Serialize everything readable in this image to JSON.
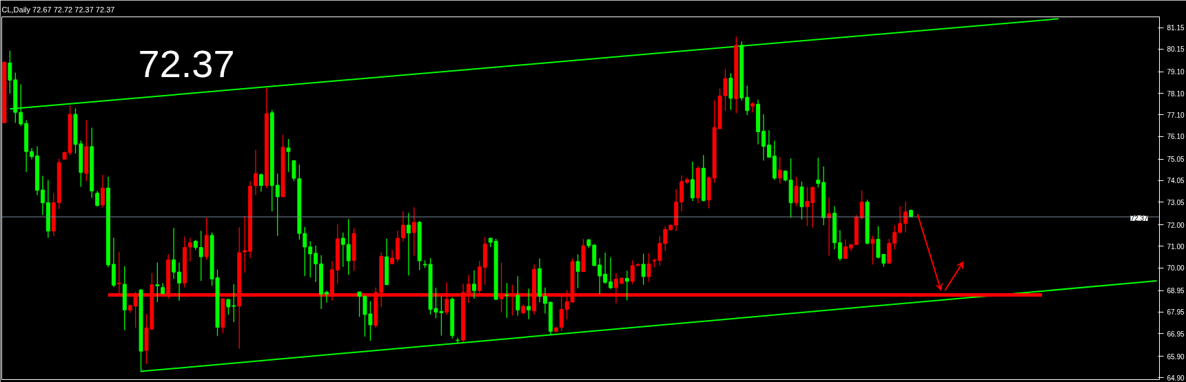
{
  "chart_data": {
    "type": "candlestick",
    "title": "CL,Daily  72.67 72.72 72.37 72.37",
    "categories": [
      null,
      null,
      null,
      null,
      null,
      null,
      null,
      null,
      null,
      null,
      null,
      null,
      null,
      null,
      null,
      null,
      null,
      null,
      null,
      null,
      null,
      null,
      null,
      null,
      null,
      null,
      null,
      null,
      null,
      null,
      null,
      null,
      null,
      null,
      null,
      null,
      null,
      null,
      null,
      null,
      null,
      null,
      null,
      null,
      null,
      null,
      null,
      null,
      null,
      null,
      null,
      null,
      null,
      null,
      null,
      null,
      null,
      null,
      null,
      null,
      null,
      null,
      null,
      null,
      null,
      null,
      null,
      null,
      null,
      null,
      null,
      null,
      null,
      null,
      null,
      null,
      null,
      null,
      null,
      null,
      null,
      null,
      null,
      null,
      null,
      null,
      null,
      null,
      null,
      null,
      null,
      null,
      null,
      null,
      null,
      null,
      null,
      null,
      null,
      null,
      null,
      null,
      null,
      null,
      null,
      null,
      null,
      null,
      null,
      null,
      null,
      null,
      null,
      null,
      null,
      null,
      null,
      null,
      null,
      null,
      null,
      null,
      null,
      null,
      null,
      null,
      null,
      null,
      null,
      null,
      null,
      null,
      null,
      null,
      null,
      null,
      null,
      null,
      null,
      null,
      null,
      null,
      null,
      null,
      null,
      null,
      null,
      null,
      null,
      null,
      null,
      null,
      null,
      null,
      null,
      null,
      null,
      null,
      null,
      null,
      null,
      null,
      null,
      null,
      null,
      null,
      null,
      null,
      null,
      null,
      null,
      null,
      null,
      null,
      null,
      null,
      null,
      null,
      null,
      null,
      null,
      null,
      null,
      null,
      null,
      null,
      null,
      null,
      null,
      null,
      null,
      null,
      null,
      null,
      null,
      null,
      null,
      null,
      null,
      null,
      null,
      null,
      null,
      null,
      null,
      null,
      null,
      null,
      null,
      null,
      null,
      null
    ],
    "ohlc": [
      [
        76.73,
        79.6,
        76.73,
        79.54
      ],
      [
        79.51,
        80.08,
        78.08,
        78.71
      ],
      [
        78.73,
        79.06,
        76.73,
        77.22
      ],
      [
        77.22,
        78.52,
        76.59,
        76.68
      ],
      [
        76.7,
        76.86,
        74.46,
        75.4
      ],
      [
        75.4,
        75.57,
        75.04,
        75.17
      ],
      [
        75.2,
        75.65,
        73.38,
        73.6
      ],
      [
        73.62,
        74.27,
        72.46,
        73.02
      ],
      [
        73.03,
        74.08,
        71.4,
        71.71
      ],
      [
        71.71,
        73.47,
        71.49,
        73.03
      ],
      [
        73.03,
        75.06,
        72.73,
        74.89
      ],
      [
        75.04,
        75.4,
        75.04,
        75.36
      ],
      [
        75.35,
        77.54,
        75.22,
        77.13
      ],
      [
        77.13,
        77.4,
        75.3,
        75.73
      ],
      [
        75.76,
        75.92,
        73.76,
        74.43
      ],
      [
        74.39,
        76.86,
        74.03,
        75.63
      ],
      [
        75.63,
        76.51,
        73.25,
        73.57
      ],
      [
        73.47,
        73.57,
        72.84,
        72.9
      ],
      [
        72.92,
        74.32,
        72.81,
        73.71
      ],
      [
        73.71,
        74.23,
        70.03,
        70.14
      ],
      [
        70.17,
        71.4,
        69.11,
        69.2
      ],
      [
        69.27,
        70.75,
        68.79,
        69.3
      ],
      [
        69.24,
        70.08,
        67.11,
        68.05
      ],
      [
        68.05,
        68.3,
        67.92,
        68.25
      ],
      [
        68.23,
        68.89,
        67.22,
        68.73
      ],
      [
        68.98,
        69.03,
        65.17,
        66.14
      ],
      [
        66.17,
        67.87,
        65.54,
        67.22
      ],
      [
        67.16,
        69.76,
        67.16,
        69.22
      ],
      [
        69.22,
        70.25,
        68.41,
        69.17
      ],
      [
        69.09,
        69.3,
        68.79,
        68.81
      ],
      [
        68.79,
        70.63,
        68.57,
        70.38
      ],
      [
        70.38,
        71.85,
        69.49,
        69.81
      ],
      [
        69.81,
        70.25,
        68.48,
        69.3
      ],
      [
        69.3,
        71.46,
        69.09,
        70.95
      ],
      [
        70.97,
        71.4,
        70.3,
        71.17
      ],
      [
        71.24,
        71.3,
        70.84,
        70.95
      ],
      [
        70.95,
        71.73,
        69.4,
        70.52
      ],
      [
        70.52,
        72.33,
        70.38,
        71.51
      ],
      [
        71.51,
        71.65,
        69.17,
        69.49
      ],
      [
        69.54,
        69.92,
        66.84,
        67.25
      ],
      [
        67.25,
        68.59,
        66.97,
        68.57
      ],
      [
        68.54,
        68.57,
        67.84,
        68.19
      ],
      [
        68.25,
        69.24,
        67.49,
        68.22
      ],
      [
        68.23,
        71.89,
        66.25,
        70.71
      ],
      [
        70.74,
        72.41,
        69.78,
        70.81
      ],
      [
        70.77,
        74.03,
        70.46,
        73.79
      ],
      [
        73.82,
        75.49,
        73.38,
        74.38
      ],
      [
        74.33,
        74.38,
        73.54,
        73.82
      ],
      [
        73.82,
        78.35,
        73.71,
        77.16
      ],
      [
        77.2,
        77.33,
        72.63,
        73.82
      ],
      [
        73.84,
        74.38,
        71.49,
        73.3
      ],
      [
        73.3,
        76.19,
        73.3,
        75.6
      ],
      [
        75.57,
        75.98,
        74.46,
        75.4
      ],
      [
        74.98,
        74.98,
        74.03,
        74.16
      ],
      [
        74.14,
        74.79,
        71.31,
        71.6
      ],
      [
        71.6,
        71.9,
        69.63,
        70.97
      ],
      [
        70.98,
        71.24,
        69.56,
        70.65
      ],
      [
        70.68,
        71.04,
        69.35,
        70.19
      ],
      [
        70.19,
        70.59,
        68.09,
        68.79
      ],
      [
        68.87,
        68.95,
        68.39,
        68.79
      ],
      [
        68.79,
        70.32,
        68.48,
        69.92
      ],
      [
        69.9,
        72.03,
        69.27,
        71.35
      ],
      [
        71.38,
        71.65,
        70.05,
        71.09
      ],
      [
        71.09,
        72.27,
        69.68,
        70.33
      ],
      [
        70.35,
        71.85,
        69.87,
        71.6
      ],
      [
        68.89,
        68.89,
        67.73,
        68.68
      ],
      [
        68.68,
        68.73,
        66.81,
        67.84
      ],
      [
        67.87,
        68.46,
        66.62,
        67.36
      ],
      [
        67.33,
        69.09,
        67.22,
        68.86
      ],
      [
        68.86,
        70.73,
        68.19,
        70.54
      ],
      [
        70.52,
        71.36,
        69.22,
        69.22
      ],
      [
        70.19,
        70.84,
        70.17,
        70.46
      ],
      [
        70.41,
        71.73,
        70.28,
        71.38
      ],
      [
        71.4,
        72.63,
        71.22,
        71.99
      ],
      [
        71.99,
        72.55,
        69.65,
        71.62
      ],
      [
        71.64,
        72.81,
        70.57,
        72.12
      ],
      [
        72.12,
        72.18,
        69.9,
        70.33
      ],
      [
        70.17,
        70.35,
        70.0,
        70.14
      ],
      [
        70.17,
        70.46,
        67.84,
        68.08
      ],
      [
        68.12,
        69.08,
        67.67,
        67.95
      ],
      [
        67.99,
        68.68,
        66.86,
        67.92
      ],
      [
        67.95,
        69.33,
        67.83,
        68.55
      ],
      [
        68.55,
        68.63,
        66.73,
        66.86
      ],
      [
        66.65,
        66.76,
        66.52,
        66.63
      ],
      [
        66.65,
        69.27,
        66.57,
        68.86
      ],
      [
        68.84,
        69.68,
        68.37,
        69.25
      ],
      [
        69.25,
        69.89,
        68.57,
        68.95
      ],
      [
        68.95,
        70.33,
        68.79,
        70.05
      ],
      [
        70.03,
        71.44,
        69.22,
        71.11
      ],
      [
        71.38,
        71.4,
        70.97,
        71.19
      ],
      [
        71.24,
        71.36,
        68.52,
        68.54
      ],
      [
        68.57,
        70.25,
        67.94,
        68.73
      ],
      [
        68.74,
        69.3,
        67.68,
        68.72
      ],
      [
        68.72,
        69.22,
        67.79,
        68.74
      ],
      [
        68.73,
        69.62,
        67.79,
        68.05
      ],
      [
        67.92,
        68.3,
        67.84,
        68.22
      ],
      [
        68.22,
        69.04,
        67.62,
        68.05
      ],
      [
        68.01,
        70.17,
        67.84,
        69.94
      ],
      [
        69.97,
        70.44,
        68.41,
        68.68
      ],
      [
        68.68,
        69.09,
        67.89,
        68.35
      ],
      [
        68.41,
        68.44,
        66.9,
        67.06
      ],
      [
        67.06,
        67.27,
        67.0,
        67.22
      ],
      [
        67.25,
        68.68,
        67.08,
        68.08
      ],
      [
        68.08,
        68.98,
        67.62,
        68.43
      ],
      [
        68.41,
        70.44,
        68.41,
        70.3
      ],
      [
        70.3,
        70.63,
        69.06,
        69.84
      ],
      [
        69.83,
        71.35,
        69.81,
        71.03
      ],
      [
        71.3,
        71.35,
        70.92,
        71.03
      ],
      [
        71.06,
        71.11,
        70.09,
        70.11
      ],
      [
        70.14,
        70.46,
        68.79,
        69.63
      ],
      [
        69.71,
        70.71,
        69.27,
        69.33
      ],
      [
        69.36,
        70.49,
        69.03,
        69.08
      ],
      [
        69.09,
        69.76,
        68.35,
        69.49
      ],
      [
        69.28,
        69.58,
        69.27,
        69.52
      ],
      [
        69.52,
        69.87,
        68.5,
        69.38
      ],
      [
        69.38,
        70.35,
        69.25,
        70.11
      ],
      [
        70.11,
        70.22,
        70.11,
        70.16
      ],
      [
        70.17,
        70.66,
        69.22,
        69.6
      ],
      [
        69.6,
        70.68,
        69.36,
        70.19
      ],
      [
        70.32,
        70.44,
        70.03,
        70.35
      ],
      [
        70.35,
        71.49,
        70.11,
        71.14
      ],
      [
        71.13,
        71.94,
        70.79,
        71.79
      ],
      [
        71.78,
        71.99,
        71.73,
        71.99
      ],
      [
        71.99,
        73.65,
        71.71,
        73.06
      ],
      [
        73.06,
        74.3,
        72.63,
        74.01
      ],
      [
        73.97,
        74.19,
        73.89,
        74.1
      ],
      [
        74.1,
        74.93,
        73.11,
        73.25
      ],
      [
        73.25,
        74.73,
        73.0,
        74.63
      ],
      [
        74.63,
        75.24,
        73.08,
        73.13
      ],
      [
        73.16,
        74.25,
        72.76,
        74.19
      ],
      [
        74.17,
        77.78,
        73.95,
        76.52
      ],
      [
        76.46,
        78.32,
        76.46,
        77.98
      ],
      [
        77.99,
        79.22,
        77.29,
        78.79
      ],
      [
        78.81,
        79.04,
        77.33,
        77.87
      ],
      [
        77.85,
        80.73,
        77.19,
        80.33
      ],
      [
        80.33,
        80.52,
        77.76,
        77.89
      ],
      [
        77.92,
        78.46,
        77.09,
        77.3
      ],
      [
        77.51,
        77.68,
        77.22,
        77.62
      ],
      [
        77.6,
        77.81,
        75.73,
        76.32
      ],
      [
        76.34,
        77.13,
        74.98,
        75.64
      ],
      [
        75.7,
        76.39,
        75.11,
        75.14
      ],
      [
        75.19,
        75.9,
        74.08,
        74.17
      ],
      [
        74.17,
        75.14,
        73.92,
        74.54
      ],
      [
        74.49,
        74.54,
        74.01,
        74.08
      ],
      [
        74.08,
        75.09,
        72.33,
        73.02
      ],
      [
        73.02,
        74.22,
        72.86,
        73.79
      ],
      [
        73.76,
        74.01,
        72.25,
        72.84
      ],
      [
        72.84,
        73.76,
        71.94,
        73.09
      ],
      [
        73.03,
        73.78,
        71.87,
        73.74
      ],
      [
        74.08,
        75.11,
        73.74,
        73.92
      ],
      [
        73.97,
        74.71,
        71.98,
        72.33
      ],
      [
        72.33,
        73.27,
        70.57,
        72.52
      ],
      [
        72.54,
        72.87,
        70.87,
        71.17
      ],
      [
        71.17,
        71.75,
        70.33,
        70.44
      ],
      [
        70.44,
        71.33,
        70.41,
        70.98
      ],
      [
        70.92,
        71.11,
        70.79,
        71.08
      ],
      [
        71.08,
        72.46,
        71.08,
        72.36
      ],
      [
        72.33,
        73.6,
        72.25,
        73.06
      ],
      [
        73.06,
        73.17,
        71.09,
        71.14
      ],
      [
        71.14,
        71.49,
        70.16,
        71.33
      ],
      [
        71.33,
        71.94,
        70.44,
        70.49
      ],
      [
        70.63,
        70.63,
        70.06,
        70.22
      ],
      [
        70.22,
        71.35,
        70.19,
        71.14
      ],
      [
        71.14,
        71.97,
        70.86,
        71.65
      ],
      [
        71.65,
        72.86,
        71.62,
        72.06
      ],
      [
        72.06,
        73.08,
        71.65,
        72.6
      ],
      [
        72.67,
        72.72,
        72.37,
        72.37
      ],
      null,
      null,
      null,
      null,
      null,
      null,
      null,
      null,
      null,
      null,
      null,
      null,
      null,
      null,
      null,
      null,
      null,
      null,
      null,
      null,
      null,
      null,
      null,
      null,
      null,
      null,
      null,
      null,
      null,
      null,
      null,
      null,
      null,
      null,
      null,
      null,
      null,
      null,
      null,
      null,
      null,
      null,
      null,
      null,
      null
    ],
    "colors": [
      "#ff0000",
      "#00ff00",
      "#00ff00",
      "#00ff00",
      "#00ff00",
      "#00ff00",
      "#00ff00",
      "#00ff00",
      "#00ff00",
      "#ff0000",
      "#ff0000",
      "#ff0000",
      "#ff0000",
      "#00ff00",
      "#00ff00",
      "#ff0000",
      "#00ff00",
      "#00ff00",
      "#ff0000",
      "#00ff00",
      "#00ff00",
      "#ff0000",
      "#00ff00",
      "#ff0000",
      "#ff0000",
      "#00ff00",
      "#ff0000",
      "#ff0000",
      "#00ff00",
      "#00ff00",
      "#ff0000",
      "#00ff00",
      "#00ff00",
      "#ff0000",
      "#ff0000",
      "#00ff00",
      "#00ff00",
      "#ff0000",
      "#00ff00",
      "#00ff00",
      "#ff0000",
      "#00ff00",
      "#00ff00",
      "#ff0000",
      "#ff0000",
      "#ff0000",
      "#ff0000",
      "#00ff00",
      "#ff0000",
      "#00ff00",
      "#00ff00",
      "#ff0000",
      "#00ff00",
      "#00ff00",
      "#00ff00",
      "#00ff00",
      "#00ff00",
      "#00ff00",
      "#00ff00",
      "#00ff00",
      "#ff0000",
      "#ff0000",
      "#00ff00",
      "#00ff00",
      "#ff0000",
      "#00ff00",
      "#00ff00",
      "#00ff00",
      "#ff0000",
      "#ff0000",
      "#00ff00",
      "#ff0000",
      "#ff0000",
      "#ff0000",
      "#00ff00",
      "#ff0000",
      "#00ff00",
      "#00ff00",
      "#00ff00",
      "#00ff00",
      "#00ff00",
      "#ff0000",
      "#00ff00",
      "#00ff00",
      "#ff0000",
      "#ff0000",
      "#00ff00",
      "#ff0000",
      "#ff0000",
      "#00ff00",
      "#00ff00",
      "#ff0000",
      "#00ff00",
      "#ff0000",
      "#00ff00",
      "#ff0000",
      "#00ff00",
      "#ff0000",
      "#00ff00",
      "#00ff00",
      "#00ff00",
      "#ff0000",
      "#ff0000",
      "#ff0000",
      "#ff0000",
      "#00ff00",
      "#ff0000",
      "#00ff00",
      "#00ff00",
      "#00ff00",
      "#00ff00",
      "#00ff00",
      "#ff0000",
      "#ff0000",
      "#00ff00",
      "#ff0000",
      "#ff0000",
      "#00ff00",
      "#ff0000",
      "#ff0000",
      "#ff0000",
      "#ff0000",
      "#ff0000",
      "#ff0000",
      "#ff0000",
      "#ff0000",
      "#00ff00",
      "#ff0000",
      "#00ff00",
      "#ff0000",
      "#ff0000",
      "#ff0000",
      "#ff0000",
      "#00ff00",
      "#ff0000",
      "#00ff00",
      "#00ff00",
      "#ff0000",
      "#00ff00",
      "#00ff00",
      "#00ff00",
      "#00ff00",
      "#ff0000",
      "#00ff00",
      "#00ff00",
      "#ff0000",
      "#00ff00",
      "#ff0000",
      "#ff0000",
      "#00ff00",
      "#00ff00",
      "#ff0000",
      "#00ff00",
      "#00ff00",
      "#ff0000",
      "#ff0000",
      "#ff0000",
      "#ff0000",
      "#00ff00",
      "#ff0000",
      "#00ff00",
      "#00ff00",
      "#ff0000",
      "#ff0000",
      "#ff0000",
      "#ff0000",
      "#00ff00",
      null,
      null,
      null,
      null,
      null,
      null,
      null,
      null,
      null,
      null,
      null,
      null,
      null,
      null,
      null,
      null,
      null,
      null,
      null,
      null,
      null,
      null,
      null,
      null,
      null,
      null,
      null,
      null,
      null,
      null,
      null,
      null,
      null,
      null,
      null,
      null,
      null,
      null,
      null,
      null,
      null,
      null,
      null,
      null,
      null
    ],
    "series": [
      {
        "type": "line",
        "color": "#00ff00",
        "values": [
          null,
          77.38,
          null,
          null,
          null,
          null,
          null,
          null,
          null,
          null,
          null,
          null,
          null,
          null,
          null,
          null,
          null,
          null,
          null,
          null,
          null,
          null,
          null,
          null,
          null,
          null,
          null,
          null,
          null,
          null,
          null,
          null,
          null,
          null,
          null,
          null,
          null,
          null,
          null,
          null,
          null,
          null,
          null,
          null,
          null,
          null,
          null,
          null,
          null,
          null,
          null,
          null,
          null,
          null,
          null,
          null,
          null,
          null,
          null,
          null,
          null,
          null,
          null,
          null,
          null,
          null,
          null,
          null,
          null,
          null,
          null,
          null,
          null,
          null,
          null,
          null,
          null,
          null,
          null,
          null,
          null,
          null,
          null,
          null,
          null,
          null,
          null,
          null,
          null,
          null,
          null,
          null,
          null,
          null,
          null,
          null,
          null,
          null,
          null,
          null,
          null,
          null,
          null,
          null,
          null,
          null,
          null,
          null,
          null,
          null,
          null,
          null,
          null,
          null,
          null,
          null,
          null,
          null,
          null,
          null,
          null,
          null,
          null,
          null,
          null,
          null,
          null,
          null,
          null,
          null,
          null,
          null,
          null,
          null,
          null,
          null,
          null,
          null,
          null,
          null,
          null,
          null,
          null,
          null,
          null,
          null,
          null,
          null,
          null,
          null,
          null,
          null,
          null,
          null,
          null,
          null,
          null,
          null,
          null,
          null,
          null,
          null,
          null,
          null,
          null,
          null,
          null,
          null,
          null,
          null,
          null,
          null,
          null,
          null,
          null,
          null,
          null,
          null,
          null,
          null,
          null,
          null,
          null,
          null,
          null,
          null,
          null,
          null,
          null,
          null,
          null,
          null,
          null,
          81.56,
          null,
          null,
          null,
          null,
          null,
          null,
          null,
          null,
          null,
          null,
          null,
          null,
          null,
          null,
          null,
          null,
          null,
          null
        ]
      },
      {
        "type": "line",
        "color": "#00ff00",
        "values": [
          null,
          null,
          null,
          null,
          null,
          null,
          null,
          null,
          null,
          null,
          null,
          null,
          null,
          null,
          null,
          null,
          null,
          null,
          null,
          null,
          null,
          null,
          null,
          null,
          null,
          65.2,
          null,
          null,
          null,
          null,
          null,
          null,
          null,
          null,
          null,
          null,
          null,
          null,
          null,
          null,
          null,
          null,
          null,
          null,
          null,
          null,
          null,
          null,
          null,
          null,
          null,
          null,
          null,
          null,
          null,
          null,
          null,
          null,
          null,
          null,
          null,
          null,
          null,
          null,
          null,
          null,
          null,
          null,
          null,
          null,
          null,
          null,
          null,
          null,
          null,
          null,
          null,
          null,
          null,
          null,
          null,
          null,
          null,
          null,
          null,
          null,
          null,
          null,
          null,
          null,
          null,
          null,
          null,
          null,
          null,
          null,
          null,
          null,
          null,
          null,
          null,
          null,
          null,
          null,
          null,
          null,
          null,
          null,
          null,
          null,
          null,
          null,
          null,
          null,
          null,
          null,
          null,
          null,
          null,
          null,
          null,
          null,
          null,
          null,
          null,
          null,
          null,
          null,
          null,
          null,
          null,
          null,
          null,
          null,
          null,
          null,
          null,
          null,
          null,
          null,
          null,
          null,
          null,
          null,
          null,
          null,
          null,
          null,
          null,
          null,
          null,
          null,
          null,
          null,
          null,
          null,
          null,
          null,
          null,
          null,
          null,
          null,
          null,
          null,
          null,
          null,
          null,
          null,
          null,
          null,
          null,
          null,
          null,
          null,
          null,
          null,
          null,
          null,
          null,
          null,
          null,
          null,
          null,
          null,
          null,
          null,
          null,
          null,
          null,
          null,
          null,
          null,
          null,
          null,
          null,
          null,
          null,
          null,
          null,
          null,
          null,
          null,
          null,
          null,
          null,
          null,
          null,
          null,
          null,
          null,
          null,
          69.4
        ]
      },
      {
        "type": "line",
        "color": "#ff0000",
        "values": [
          null,
          null,
          null,
          null,
          null,
          null,
          null,
          null,
          null,
          null,
          null,
          null,
          null,
          null,
          null,
          null,
          null,
          null,
          null,
          68.75,
          null,
          null,
          null,
          null,
          null,
          null,
          null,
          null,
          null,
          null,
          null,
          null,
          null,
          null,
          null,
          null,
          null,
          null,
          null,
          null,
          null,
          null,
          null,
          null,
          null,
          null,
          null,
          null,
          null,
          null,
          null,
          null,
          null,
          null,
          null,
          null,
          null,
          null,
          null,
          null,
          null,
          null,
          null,
          null,
          null,
          null,
          null,
          null,
          null,
          null,
          null,
          null,
          null,
          null,
          null,
          null,
          null,
          null,
          null,
          null,
          null,
          null,
          null,
          null,
          null,
          null,
          null,
          null,
          null,
          null,
          null,
          null,
          null,
          null,
          null,
          null,
          null,
          null,
          null,
          null,
          null,
          null,
          null,
          null,
          null,
          null,
          null,
          null,
          null,
          null,
          null,
          null,
          null,
          null,
          null,
          null,
          null,
          null,
          null,
          null,
          null,
          null,
          null,
          null,
          null,
          null,
          null,
          null,
          null,
          null,
          null,
          null,
          null,
          null,
          null,
          null,
          null,
          null,
          null,
          null,
          null,
          null,
          null,
          null,
          null,
          null,
          null,
          null,
          null,
          null,
          null,
          null,
          null,
          null,
          null,
          null,
          null,
          null,
          null,
          null,
          null,
          null,
          null,
          null,
          null,
          null,
          null,
          null,
          null,
          null,
          null,
          null,
          null,
          null,
          null,
          null,
          null,
          null,
          null,
          null,
          null,
          null,
          null,
          null,
          null,
          null,
          null,
          null,
          null,
          null,
          68.75,
          null,
          null,
          null,
          null,
          null,
          null,
          null,
          null,
          null,
          null,
          null,
          null,
          null,
          null,
          null,
          null,
          null,
          null,
          null,
          null,
          null
        ]
      }
    ],
    "ref_lines": [
      {
        "axis": "y",
        "value": 72.37,
        "label": "72.37",
        "color": "#778899"
      }
    ],
    "annotations": [
      "72.37"
    ],
    "ylim": [
      64.82,
      81.65
    ],
    "yticks": [
      {
        "value": 64.9,
        "label": "64.90"
      },
      {
        "value": 65.9,
        "label": "65.90"
      },
      66.95,
      67.95,
      68.95,
      {
        "value": 70.0,
        "label": "70.00"
      },
      {
        "value": 71.0,
        "label": "71.00"
      },
      {
        "value": 72.0,
        "label": "72.00"
      },
      73.05,
      74.05,
      75.05,
      {
        "value": 76.1,
        "label": "76.10"
      },
      {
        "value": 77.1,
        "label": "77.10"
      },
      {
        "value": 78.1,
        "label": "78.10"
      },
      {
        "value": 79.1,
        "label": "79.10"
      },
      80.15,
      81.15
    ],
    "tick_labels": "y"
  }
}
